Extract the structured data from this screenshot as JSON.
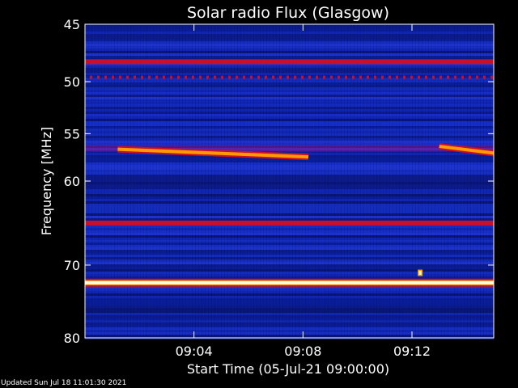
{
  "chart_data": {
    "type": "heatmap",
    "title": "Solar radio Flux (Glasgow)",
    "ylabel": "Frequency [MHz]",
    "xlabel": "Start Time (05-Jul-21 09:00:00)",
    "y_range_mhz": [
      45,
      80
    ],
    "y_scale": "log",
    "y_ticks": [
      45,
      50,
      55,
      60,
      70,
      80
    ],
    "x_range_minutes": [
      0,
      15
    ],
    "x_ticks": [
      "09:04",
      "09:08",
      "09:12"
    ],
    "x_tick_minutes": [
      4,
      8,
      12
    ],
    "colors": {
      "background": "#000000",
      "low": "#0a1a8c",
      "mid": "#2a3fe0",
      "high": "#c8102a",
      "peak": "#ff9a00",
      "saturated": "#ffffe0"
    },
    "features": [
      {
        "type": "band",
        "freq_mhz": 48.2,
        "intensity": "high"
      },
      {
        "type": "dotted_band",
        "freq_mhz": 49.6,
        "intensity": "high"
      },
      {
        "type": "band",
        "freq_mhz": 56.5,
        "intensity": "mid-high"
      },
      {
        "type": "band",
        "freq_mhz": 64.8,
        "intensity": "high"
      },
      {
        "type": "band",
        "freq_mhz": 72.3,
        "intensity": "saturated"
      },
      {
        "type": "drifting_feature",
        "start_minute": 1.2,
        "end_minute": 8.2,
        "freq_start_mhz": 56.6,
        "freq_end_mhz": 57.4,
        "intensity": "peak"
      },
      {
        "type": "drifting_feature",
        "start_minute": 13.0,
        "end_minute": 15.0,
        "freq_start_mhz": 56.3,
        "freq_end_mhz": 57.0,
        "intensity": "peak"
      },
      {
        "type": "spot",
        "minute": 12.3,
        "freq_mhz": 71.0,
        "intensity": "saturated"
      }
    ]
  },
  "footer": {
    "updated": "Updated Sun Jul 18 11:01:30 2021"
  }
}
